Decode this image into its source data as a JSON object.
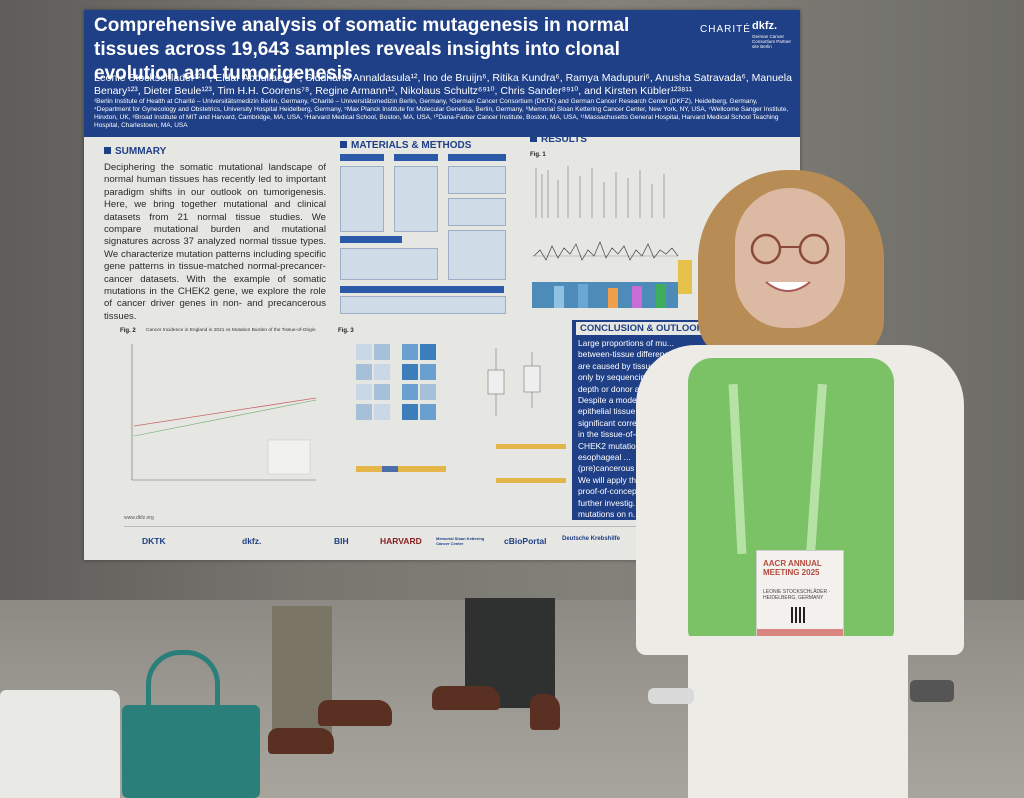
{
  "poster": {
    "title": "Comprehensive analysis of somatic mutagenesis in normal tissues across 19,643 samples reveals insights into clonal evolution and tumorigenesis",
    "authors": "Leonie Stockschläder¹²³⁴, Eldar Abdullaev¹²⁵, Siddharth Annaldasula¹², Ino de Bruijn⁶, Ritika Kundra⁶, Ramya Madupuri⁶, Anusha Satravada⁶, Manuela Benary¹²³, Dieter Beule¹²³, Tim H.H. Coorens⁷⁸, Regine Armann¹², Nikolaus Schultz⁶⁹¹⁰, Chris Sander⁸⁹¹⁰, and Kirsten Kübler¹²³⁸¹¹",
    "affiliations": "¹Berlin Institute of Health at Charité – Universitätsmedizin Berlin, Germany, ²Charité – Universitätsmedizin Berlin, Germany, ³German Cancer Consortium (DKTK) and German Cancer Research Center (DKFZ), Heidelberg, Germany, ⁴Department for Gynecology and Obstetrics, University Hospital Heidelberg, Germany, ⁵Max Planck Institute for Molecular Genetics, Berlin, Germany, ⁶Memorial Sloan Kettering Cancer Center, New York, NY, USA, ⁷Wellcome Sanger Institute, Hinxton, UK, ⁸Broad Institute of MIT and Harvard, Cambridge, MA, USA, ⁹Harvard Medical School, Boston, MA, USA, ¹⁰Dana-Farber Cancer Institute, Boston, MA, USA, ¹¹Massachusetts General Hospital, Harvard Medical School Teaching Hospital, Charlestown, MA, USA",
    "header_logos": {
      "charite": "CHARITÉ",
      "dkfz": "dkfz.",
      "dkfz_sub": "German Cancer Consortium Partner site Berlin"
    },
    "sections": {
      "summary": "SUMMARY",
      "methods": "MATERIALS & METHODS",
      "results": "RESULTS",
      "conclusion": "CONCLUSION & OUTLOOK"
    },
    "summary_text": "Deciphering the somatic mutational landscape of normal human tissues has recently led to important paradigm shifts in our outlook on tumorigenesis. Here, we bring together mutational and clinical datasets from 21 normal tissue studies. We compare mutational burden and mutational signatures across 37 analyzed normal tissue types. We characterize mutation patterns including specific gene patterns in tissue-matched normal-precancer-cancer datasets. With the example of somatic mutations in the CHEK2 gene, we explore the role of cancer driver genes in non- and precancerous tissues.",
    "conclusion_items": [
      "Large proportions of mu...",
      "between-tissue differences ...",
      "are caused by tissue-inhere...",
      "only by sequencing",
      "depth or donor age.",
      "Despite a modera...",
      "epithelial tissue...",
      "significant correla...",
      "in the tissue-of-o...",
      "CHEK2 mutatio...",
      "esophageal ...",
      "(pre)cancerous ...",
      "We will apply th...",
      "proof-of-concep...",
      "further investig...",
      "mutations on n..."
    ],
    "fig_labels": {
      "fig1": "Fig. 1",
      "fig2": "Fig. 2",
      "fig3": "Fig. 3"
    },
    "fig2_title": "Cancer Incidence in England in 2021 vs Mutation Burden of the Tissue-of-Origin",
    "website": "www.dkfz.org",
    "footer_logos": [
      "DKTK",
      "dkfz.",
      "BIH",
      "HARVARD",
      "Memorial Sloan Kettering Cancer Center",
      "cBioPortal",
      "Deutsche Krebshilfe"
    ]
  },
  "badge": {
    "meeting": "AACR ANNUAL MEETING 2025",
    "name": "LEONIE STOCKSCHLÄDER · HEIDELBERG, GERMANY"
  },
  "colors": {
    "poster_blue": "#1f3f86",
    "vest_green": "#7bc266",
    "lanyard_green": "#b7e2a6",
    "bag_teal": "#2a7f7a"
  }
}
